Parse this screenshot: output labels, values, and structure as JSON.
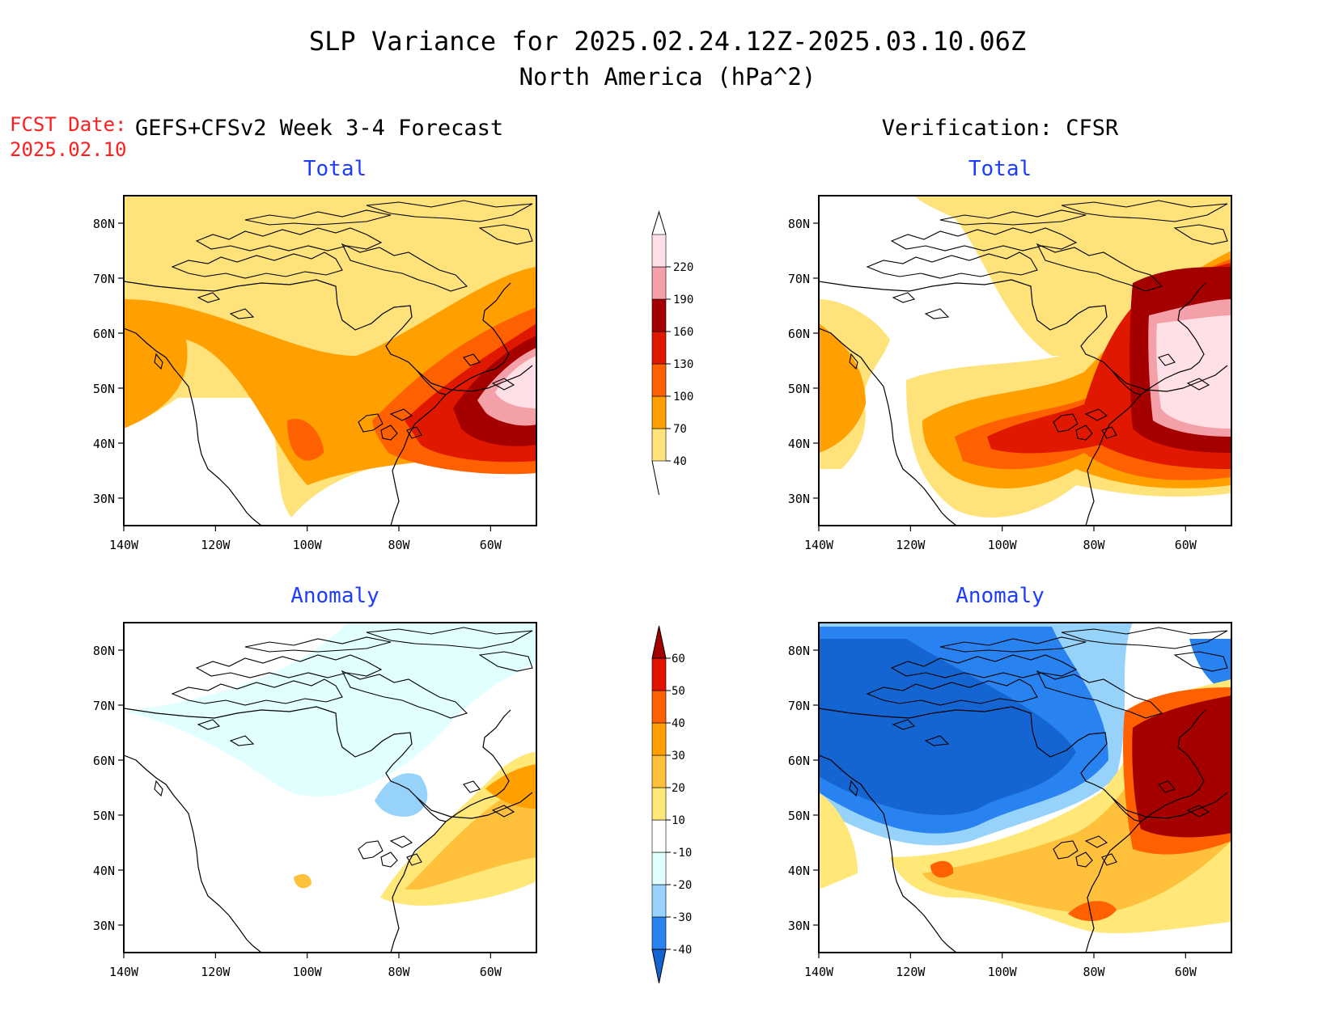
{
  "title": {
    "line1": "SLP Variance for 2025.02.24.12Z-2025.03.10.06Z",
    "line2": "North America (hPa^2)"
  },
  "fcst": {
    "label": "FCST Date:",
    "date": "2025.02.10"
  },
  "columns": {
    "left": "GEFS+CFSv2 Week 3-4 Forecast",
    "right": "Verification: CFSR"
  },
  "panel_titles": {
    "total": "Total",
    "anomaly": "Anomaly"
  },
  "map_axes": {
    "lon_ticks": [
      "140W",
      "120W",
      "100W",
      "80W",
      "60W"
    ],
    "lat_ticks": [
      "80N",
      "70N",
      "60N",
      "50N",
      "40N",
      "30N"
    ],
    "lon_range": [
      -140,
      -50
    ],
    "lat_range": [
      25,
      85
    ]
  },
  "total_colorbar": {
    "levels": [
      "40",
      "70",
      "100",
      "130",
      "160",
      "190",
      "220"
    ],
    "colors": [
      "#ffe27a",
      "#ff9f00",
      "#ff6000",
      "#e11800",
      "#a50000",
      "#f4a0a8",
      "#ffe0e6"
    ]
  },
  "anomaly_colorbar": {
    "levels": [
      "-40",
      "-30",
      "-20",
      "-10",
      "10",
      "20",
      "30",
      "40",
      "50",
      "60"
    ],
    "colors": [
      "#1464d2",
      "#2882f0",
      "#96d2fa",
      "#e1ffff",
      "#ffffff",
      "#ffe878",
      "#ffc03c",
      "#ffa000",
      "#ff6000",
      "#e11400",
      "#a50000"
    ]
  }
}
